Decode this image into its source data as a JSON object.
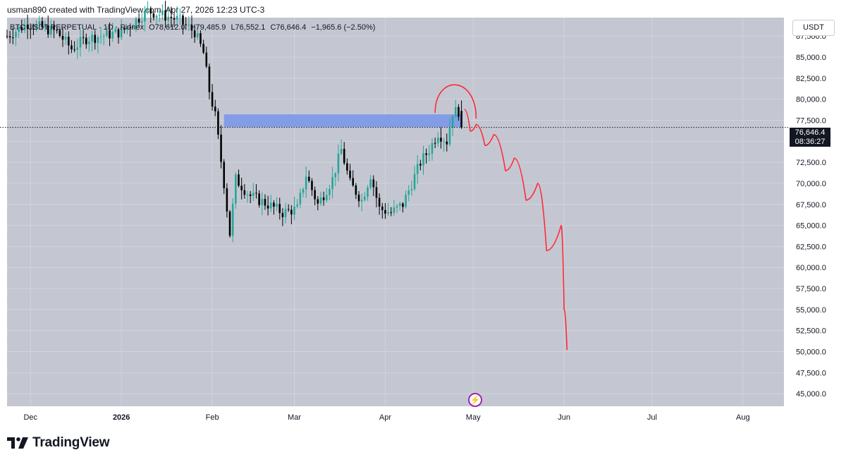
{
  "attribution": "usman890 created with TradingView.com, Apr 27, 2026 12:23 UTC-3",
  "legend": {
    "symbol": "BTC USDT PERPETUAL · 1D · Pionex",
    "open": "O78,612.0",
    "high": "H79,485.9",
    "low": "L76,552.1",
    "close": "C76,646.4",
    "change": "−1,965.6 (−2.50%)"
  },
  "currency_button": "USDT",
  "price_badge": {
    "price": "76,646.4",
    "countdown": "08:36:27"
  },
  "footer_brand": "TradingView",
  "colors": {
    "up": "#26a69a",
    "down": "#000000",
    "zone": "#7b97e8",
    "drawing": "#ff2a3a",
    "grid": "#d6d9e0",
    "pane": "#c4c7d1"
  },
  "icons": {
    "bolt": "lightning-bolt-icon",
    "logo": "tradingview-logo-icon"
  },
  "chart_data": {
    "type": "candlestick",
    "y_axis": {
      "ticks": [
        45000,
        47500,
        50000,
        52500,
        55000,
        57500,
        60000,
        62500,
        65000,
        67500,
        70000,
        72500,
        75000,
        77500,
        80000,
        82500,
        85000,
        87500
      ],
      "labels": [
        "45,000.0",
        "47,500.0",
        "50,000.0",
        "52,500.0",
        "55,000.0",
        "57,500.0",
        "60,000.0",
        "62,500.0",
        "65,000.0",
        "67,500.0",
        "70,000.0",
        "72,500.0",
        "75,000.0",
        "77,500.0",
        "80,000.0",
        "82,500.0",
        "85,000.0",
        "87,500.0"
      ],
      "range": [
        43500,
        89700
      ]
    },
    "x_axis": {
      "labels": [
        "Dec",
        "2026",
        "Feb",
        "Mar",
        "Apr",
        "May",
        "Jun",
        "Jul",
        "Aug"
      ],
      "dates": [
        "2025-12-01",
        "2026-01-01",
        "2026-02-01",
        "2026-03-01",
        "2026-04-01",
        "2026-05-01",
        "2026-06-01",
        "2026-07-01",
        "2026-08-01"
      ],
      "range": [
        "2025-11-23",
        "2026-08-15"
      ]
    },
    "last_price": 76646.4,
    "anchors": [
      [
        "2025-11-23",
        87500
      ],
      [
        "2025-11-30",
        89000
      ],
      [
        "2025-12-05",
        88500
      ],
      [
        "2025-12-10",
        88000
      ],
      [
        "2025-12-15",
        86000
      ],
      [
        "2025-12-20",
        87200
      ],
      [
        "2025-12-25",
        87500
      ],
      [
        "2026-01-01",
        88000
      ],
      [
        "2026-01-10",
        90500
      ],
      [
        "2026-01-20",
        89500
      ],
      [
        "2026-01-26",
        88000
      ],
      [
        "2026-01-29",
        85500
      ],
      [
        "2026-01-31",
        81000
      ],
      [
        "2026-02-02",
        78000
      ],
      [
        "2026-02-05",
        70000
      ],
      [
        "2026-02-07",
        64000
      ],
      [
        "2026-02-09",
        70500
      ],
      [
        "2026-02-14",
        68500
      ],
      [
        "2026-02-20",
        67500
      ],
      [
        "2026-02-25",
        66500
      ],
      [
        "2026-03-02",
        67000
      ],
      [
        "2026-03-05",
        71000
      ],
      [
        "2026-03-09",
        67500
      ],
      [
        "2026-03-14",
        70500
      ],
      [
        "2026-03-17",
        74000
      ],
      [
        "2026-03-20",
        70000
      ],
      [
        "2026-03-24",
        68000
      ],
      [
        "2026-03-27",
        71000
      ],
      [
        "2026-03-30",
        67000
      ],
      [
        "2026-04-03",
        66500
      ],
      [
        "2026-04-07",
        67500
      ],
      [
        "2026-04-10",
        70000
      ],
      [
        "2026-04-13",
        72500
      ],
      [
        "2026-04-16",
        74000
      ],
      [
        "2026-04-19",
        76000
      ],
      [
        "2026-04-22",
        75000
      ],
      [
        "2026-04-24",
        78500
      ],
      [
        "2026-04-26",
        78600
      ],
      [
        "2026-04-27",
        76646
      ]
    ],
    "zone": {
      "from": "2026-02-05",
      "to": "2026-04-27",
      "low": 76700,
      "high": 78200
    },
    "annotations": [
      {
        "type": "arc",
        "center": "2026-04-25",
        "top_price": 82600
      },
      {
        "type": "projection_path",
        "points": [
          [
            "2026-04-28",
            78800
          ],
          [
            "2026-04-30",
            76200
          ],
          [
            "2026-05-02",
            77000
          ],
          [
            "2026-05-05",
            74500
          ],
          [
            "2026-05-08",
            75800
          ],
          [
            "2026-05-12",
            71500
          ],
          [
            "2026-05-15",
            73000
          ],
          [
            "2026-05-19",
            68000
          ],
          [
            "2026-05-23",
            70000
          ],
          [
            "2026-05-26",
            62000
          ],
          [
            "2026-05-31",
            65000
          ],
          [
            "2026-06-01",
            55000
          ],
          [
            "2026-06-02",
            50200
          ]
        ]
      }
    ]
  }
}
